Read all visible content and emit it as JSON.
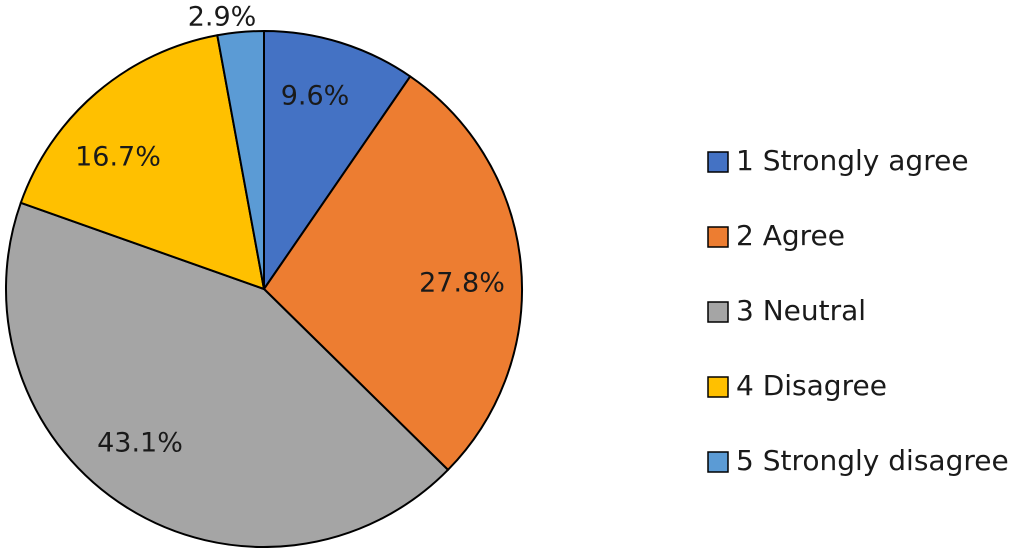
{
  "chart_data": {
    "type": "pie",
    "start_angle_deg": 0,
    "direction": "clockwise",
    "slices": [
      {
        "label": "1 Strongly agree",
        "value": 9.6,
        "value_label": "9.6%",
        "color": "#4472C4"
      },
      {
        "label": "2 Agree",
        "value": 27.8,
        "value_label": "27.8%",
        "color": "#ED7D31"
      },
      {
        "label": "3 Neutral",
        "value": 43.1,
        "value_label": "43.1%",
        "color": "#A5A5A5"
      },
      {
        "label": "4 Disagree",
        "value": 16.7,
        "value_label": "16.7%",
        "color": "#FFC000"
      },
      {
        "label": "5 Strongly disagree",
        "value": 2.9,
        "value_label": "2.9%",
        "color": "#5B9BD5"
      }
    ],
    "title": "",
    "legend_position": "right"
  }
}
